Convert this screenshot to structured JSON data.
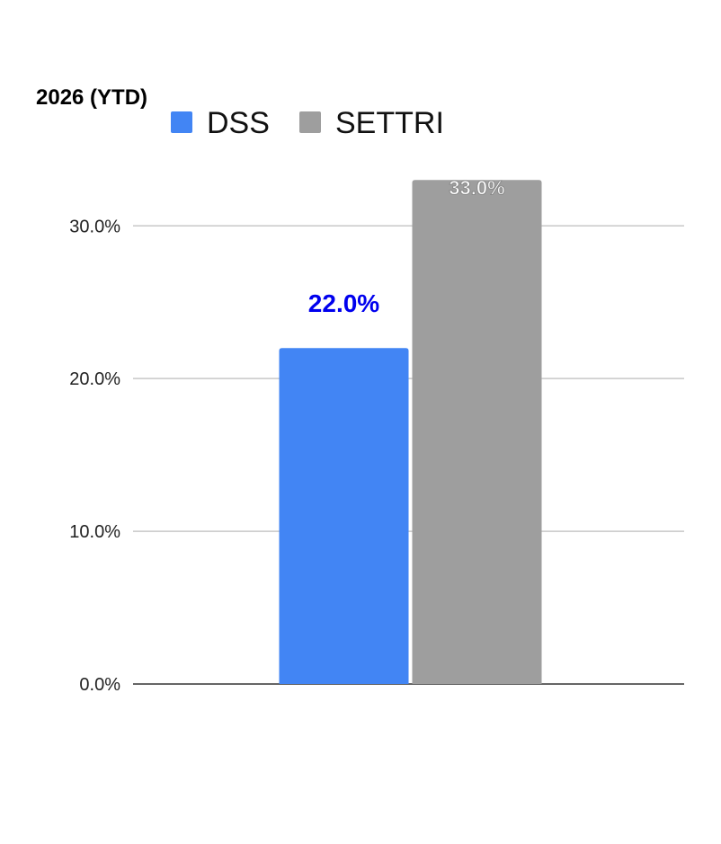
{
  "chart_data": {
    "type": "bar",
    "title": "2026 (YTD)",
    "xlabel": "",
    "ylabel": "",
    "categories": [
      ""
    ],
    "series": [
      {
        "name": "DSS",
        "values": [
          22.0
        ],
        "color": "#4285f4",
        "label_color": "#0000ee"
      },
      {
        "name": "SETTRI",
        "values": [
          33.0
        ],
        "color": "#9e9e9e",
        "label_color": "#ffffff"
      }
    ],
    "ylim": [
      0,
      32.9
    ],
    "yticks": [
      0,
      10,
      20,
      30
    ],
    "ytick_labels": [
      "0.0%",
      "10.0%",
      "20.0%",
      "30.0%"
    ],
    "data_labels": [
      "22.0%",
      "33.0%"
    ],
    "grid": true,
    "legend": "top"
  }
}
